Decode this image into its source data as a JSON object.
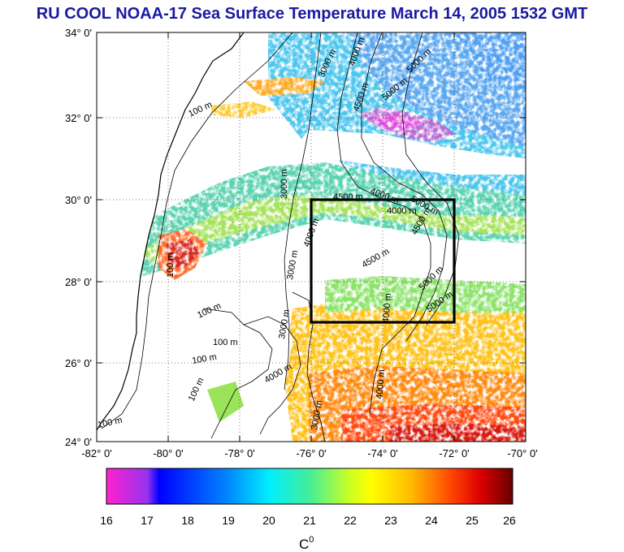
{
  "title": "RU COOL  NOAA-17 Sea Surface Temperature March 14, 2005 1532 GMT",
  "map": {
    "lat_labels": [
      "34° 0'",
      "32° 0'",
      "30° 0'",
      "28° 0'",
      "26° 0'",
      "24° 0'"
    ],
    "lon_labels": [
      "-82° 0'",
      "-80° 0'",
      "-78° 0'",
      "-76° 0'",
      "-74° 0'",
      "-72° 0'",
      "-70° 0'"
    ],
    "lat_range": [
      24,
      34
    ],
    "lon_range": [
      -82,
      -70
    ],
    "study_box": {
      "lon": [
        -76,
        -72.5
      ],
      "lat": [
        27,
        30
      ]
    },
    "contour_labels": [
      "100 m",
      "100 m",
      "100 m",
      "100 m",
      "100 m",
      "100 m",
      "100 m",
      "3000 m",
      "3000 m",
      "3000 m",
      "3000 m",
      "3000 m",
      "4000 m",
      "4000 m",
      "4000 m",
      "4000 m",
      "4000 m",
      "4000 m",
      "4000 m",
      "4500 m",
      "4500 m",
      "4500 m",
      "4500 m",
      "5000 m",
      "5000 m",
      "5000 m",
      "5000 m",
      "5000 m"
    ]
  },
  "colorbar": {
    "ticks": [
      "16",
      "17",
      "18",
      "19",
      "20",
      "21",
      "22",
      "23",
      "24",
      "25",
      "26"
    ],
    "unit_label": "C",
    "unit_sup": "0",
    "range": [
      16,
      26
    ],
    "colors": [
      "#ff22cc",
      "#8833ee",
      "#0000ff",
      "#0077ff",
      "#00ddff",
      "#55ee88",
      "#ddff00",
      "#ffbb00",
      "#ff4400",
      "#cc0000",
      "#770000"
    ]
  }
}
